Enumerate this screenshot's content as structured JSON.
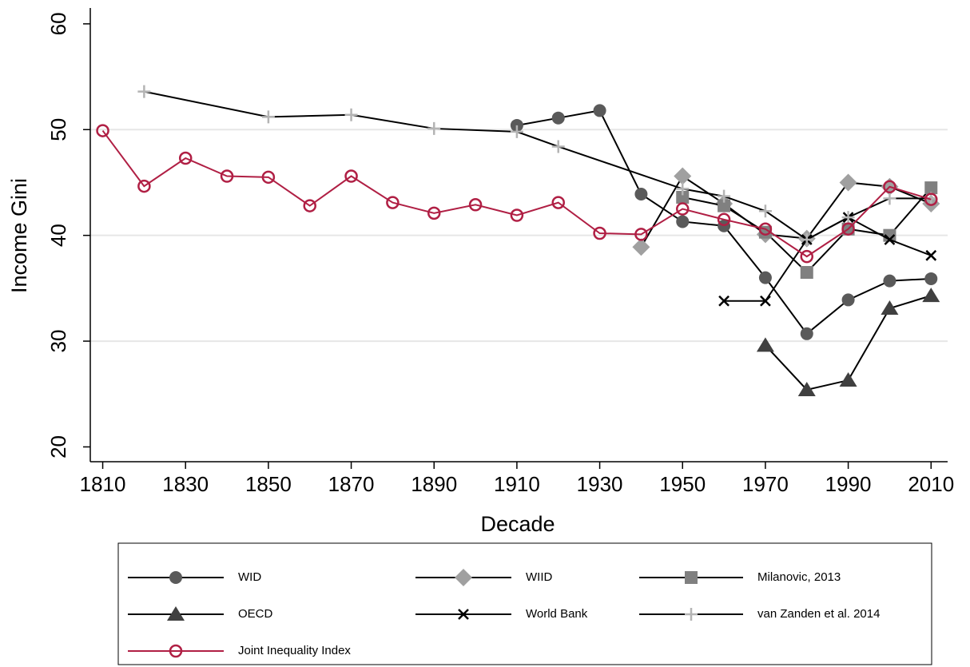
{
  "chart_data": {
    "type": "line",
    "x_label": "Decade",
    "y_label": "Income Gini",
    "xlim": [
      1807,
      2014
    ],
    "ylim": [
      18.6,
      61.5
    ],
    "xticks": [
      1810,
      1830,
      1850,
      1870,
      1890,
      1910,
      1930,
      1950,
      1970,
      1990,
      2010
    ],
    "yticks": [
      20,
      30,
      40,
      50,
      60
    ],
    "grid": true,
    "legend_position": "bottom",
    "series": [
      {
        "name": "WID",
        "marker": "circle",
        "color": "#5a5a5a",
        "line_color": "#000000",
        "x": [
          1910,
          1920,
          1930,
          1940,
          1950,
          1960,
          1970,
          1980,
          1990,
          2000,
          2010
        ],
        "values": [
          50.4,
          51.1,
          51.8,
          43.9,
          41.3,
          40.9,
          36.0,
          30.7,
          33.9,
          35.7,
          35.9
        ]
      },
      {
        "name": "WIID",
        "marker": "diamond",
        "color": "#a0a0a0",
        "line_color": "#000000",
        "x": [
          1940,
          1950,
          1960,
          1970,
          1980,
          1990,
          2000,
          2010
        ],
        "values": [
          38.9,
          45.6,
          43.0,
          40.1,
          39.7,
          45.0,
          44.6,
          43.0
        ]
      },
      {
        "name": "Milanovic, 2013",
        "marker": "square",
        "color": "#808080",
        "line_color": "#000000",
        "x": [
          1950,
          1960,
          1970,
          1980,
          1990,
          2000,
          2010
        ],
        "values": [
          43.6,
          42.8,
          40.3,
          36.5,
          40.6,
          40.0,
          44.5
        ]
      },
      {
        "name": "OECD",
        "marker": "triangle",
        "color": "#404040",
        "line_color": "#000000",
        "x": [
          1970,
          1980,
          1990,
          2000,
          2010
        ],
        "values": [
          29.6,
          25.4,
          26.3,
          33.1,
          34.3
        ]
      },
      {
        "name": "World Bank",
        "marker": "x",
        "color": "#000000",
        "line_color": "#000000",
        "x": [
          1960,
          1970,
          1980,
          1990,
          2000,
          2010
        ],
        "values": [
          33.8,
          33.8,
          39.6,
          41.7,
          39.6,
          38.1
        ]
      },
      {
        "name": "van Zanden et al. 2014",
        "marker": "plus",
        "color": "#b4b4b4",
        "line_color": "#000000",
        "x": [
          1820,
          1850,
          1870,
          1890,
          1910,
          1920,
          1950,
          1960,
          1970,
          1980,
          1990,
          2000,
          2010
        ],
        "values": [
          53.6,
          51.2,
          51.4,
          50.1,
          49.8,
          48.4,
          44.4,
          43.7,
          42.3,
          39.6,
          41.7,
          43.5,
          43.5
        ]
      },
      {
        "name": "Joint Inequality Index",
        "marker": "hollow-circle",
        "color": "#b01f44",
        "line_color": "#b01f44",
        "x": [
          1810,
          1820,
          1830,
          1840,
          1850,
          1860,
          1870,
          1880,
          1890,
          1900,
          1910,
          1920,
          1930,
          1940,
          1950,
          1960,
          1970,
          1980,
          1990,
          2000,
          2010
        ],
        "values": [
          49.9,
          44.65,
          47.3,
          45.6,
          45.5,
          42.8,
          45.6,
          43.1,
          42.1,
          42.9,
          41.9,
          43.1,
          40.2,
          40.1,
          42.5,
          41.5,
          40.6,
          38.0,
          40.6,
          44.6,
          43.4
        ]
      }
    ]
  }
}
